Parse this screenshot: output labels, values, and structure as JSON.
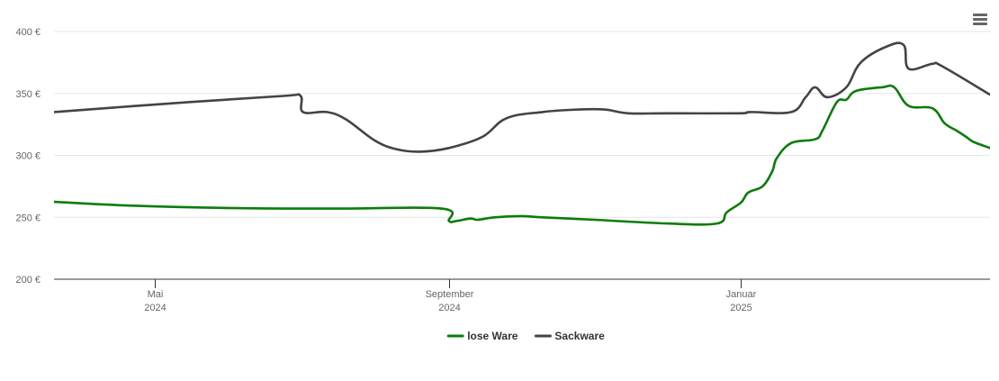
{
  "chart_data": {
    "type": "line",
    "title": "",
    "xlabel": "",
    "ylabel": "",
    "x_range": [
      "2024-03-20",
      "2025-04-15"
    ],
    "ylim": [
      200,
      400
    ],
    "grid": true,
    "legend_position": "bottom-center",
    "y_ticks": [
      {
        "value": 200,
        "label": "200 €"
      },
      {
        "value": 250,
        "label": "250 €"
      },
      {
        "value": 300,
        "label": "300 €"
      },
      {
        "value": 350,
        "label": "350 €"
      },
      {
        "value": 400,
        "label": "400 €"
      }
    ],
    "x_ticks": [
      {
        "date": "2024-05-01",
        "month": "Mai",
        "year": "2024"
      },
      {
        "date": "2024-09-01",
        "month": "September",
        "year": "2024"
      },
      {
        "date": "2025-01-01",
        "month": "Januar",
        "year": "2025"
      }
    ],
    "series": [
      {
        "name": "lose Ware",
        "color": "#0a7d0a",
        "points": [
          [
            "2024-03-20",
            262.5
          ],
          [
            "2024-04-20",
            259.5
          ],
          [
            "2024-06-01",
            257.5
          ],
          [
            "2024-07-15",
            257
          ],
          [
            "2024-08-29",
            257
          ],
          [
            "2024-09-01",
            247
          ],
          [
            "2024-09-04",
            247
          ],
          [
            "2024-09-10",
            249
          ],
          [
            "2024-09-13",
            248
          ],
          [
            "2024-09-20",
            250
          ],
          [
            "2024-10-01",
            251
          ],
          [
            "2024-10-10",
            250
          ],
          [
            "2024-11-01",
            248
          ],
          [
            "2024-12-01",
            245
          ],
          [
            "2024-12-22",
            245
          ],
          [
            "2024-12-26",
            254
          ],
          [
            "2025-01-01",
            262
          ],
          [
            "2025-01-04",
            270
          ],
          [
            "2025-01-10",
            275
          ],
          [
            "2025-01-14",
            287
          ],
          [
            "2025-01-16",
            298
          ],
          [
            "2025-01-22",
            310
          ],
          [
            "2025-02-01",
            313
          ],
          [
            "2025-02-04",
            320
          ],
          [
            "2025-02-10",
            343
          ],
          [
            "2025-02-14",
            345
          ],
          [
            "2025-02-18",
            352
          ],
          [
            "2025-03-01",
            355
          ],
          [
            "2025-03-06",
            355
          ],
          [
            "2025-03-12",
            340
          ],
          [
            "2025-03-22",
            338
          ],
          [
            "2025-03-27",
            326
          ],
          [
            "2025-04-01",
            320
          ],
          [
            "2025-04-05",
            315
          ],
          [
            "2025-04-08",
            311
          ],
          [
            "2025-04-15",
            306
          ]
        ]
      },
      {
        "name": "Sackware",
        "color": "#434348",
        "points": [
          [
            "2024-03-20",
            335
          ],
          [
            "2024-05-15",
            343
          ],
          [
            "2024-06-24",
            348
          ],
          [
            "2024-07-01",
            348
          ],
          [
            "2024-07-02",
            335
          ],
          [
            "2024-07-12",
            335
          ],
          [
            "2024-07-20",
            329
          ],
          [
            "2024-08-01",
            312
          ],
          [
            "2024-08-10",
            305
          ],
          [
            "2024-08-20",
            303
          ],
          [
            "2024-09-01",
            306
          ],
          [
            "2024-09-15",
            315
          ],
          [
            "2024-09-25",
            330
          ],
          [
            "2024-10-10",
            335
          ],
          [
            "2024-10-25",
            337
          ],
          [
            "2024-11-05",
            337
          ],
          [
            "2024-11-15",
            334
          ],
          [
            "2024-12-01",
            334
          ],
          [
            "2024-12-31",
            334
          ],
          [
            "2025-01-05",
            335
          ],
          [
            "2025-01-22",
            335
          ],
          [
            "2025-01-28",
            347
          ],
          [
            "2025-02-01",
            355
          ],
          [
            "2025-02-06",
            347
          ],
          [
            "2025-02-14",
            355
          ],
          [
            "2025-02-20",
            375
          ],
          [
            "2025-03-03",
            388
          ],
          [
            "2025-03-10",
            389
          ],
          [
            "2025-03-12",
            370
          ],
          [
            "2025-03-22",
            374
          ],
          [
            "2025-03-26",
            372
          ],
          [
            "2025-04-15",
            349
          ]
        ]
      }
    ]
  },
  "menu": {
    "icon": "hamburger-menu-icon"
  }
}
